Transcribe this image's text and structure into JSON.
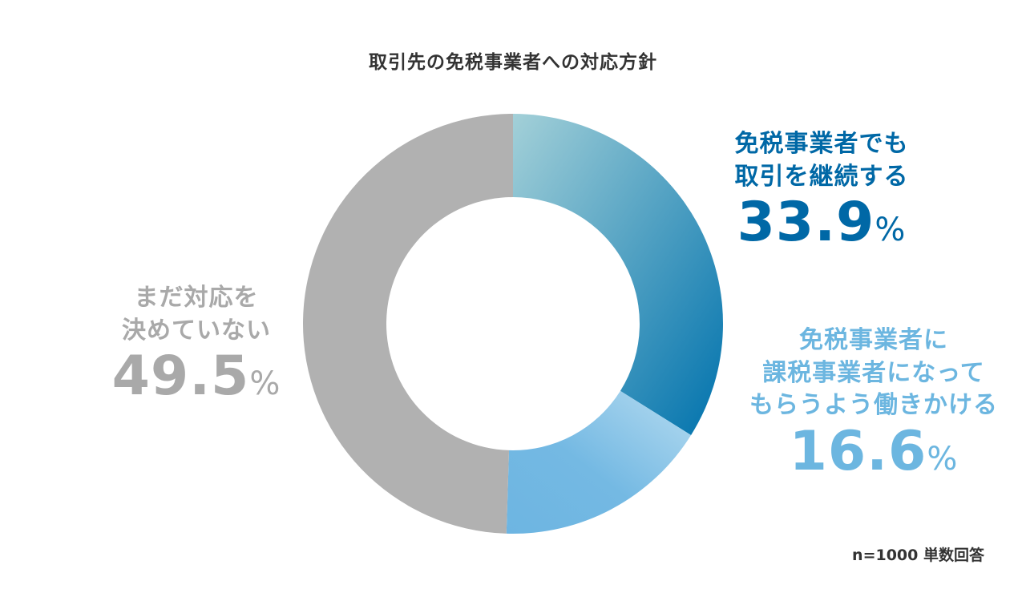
{
  "chart_data": {
    "type": "pie",
    "title": "取引先の免税事業者への対応方針",
    "categories": [
      "免税事業者でも取引を継続する",
      "免税事業者に課税事業者になってもらうよう働きかける",
      "まだ対応を決めていない"
    ],
    "values": [
      33.9,
      16.6,
      49.5
    ],
    "unit": "%",
    "donut": true,
    "colors": [
      "#0072ad",
      "#74b9e3",
      "#b1b1b1"
    ],
    "labels": {
      "continue": {
        "line1": "免税事業者でも",
        "line2": "取引を継続する",
        "value": "33.9",
        "unit": "%"
      },
      "convert": {
        "line1": "免税事業者に",
        "line2": "課税事業者になって",
        "line3": "もらうよう働きかける",
        "value": "16.6",
        "unit": "%"
      },
      "undecided": {
        "line1": "まだ対応を",
        "line2": "決めていない",
        "value": "49.5",
        "unit": "%"
      }
    },
    "note": "n=1000 単数回答"
  }
}
